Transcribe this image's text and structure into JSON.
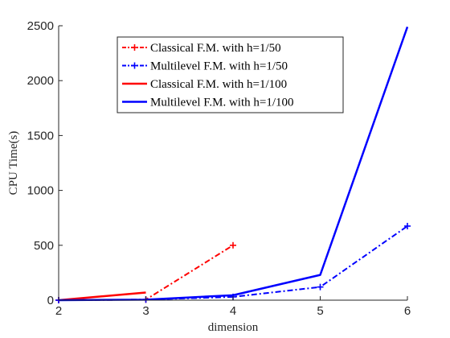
{
  "chart_data": {
    "type": "line",
    "xlabel": "dimension",
    "ylabel": "CPU Time(s)",
    "xlim": [
      2,
      6
    ],
    "ylim": [
      0,
      2500
    ],
    "x_ticks": [
      2,
      3,
      4,
      5,
      6
    ],
    "y_ticks": [
      0,
      500,
      1000,
      1500,
      2000,
      2500
    ],
    "grid": false,
    "legend_position": "top-center",
    "series": [
      {
        "name": "Classical F.M. with h=1/50",
        "color": "#ff0000",
        "style": "dashdot",
        "marker": "plus",
        "x": [
          2,
          3,
          4
        ],
        "values": [
          0,
          5,
          500
        ]
      },
      {
        "name": "Multilevel F.M. with h=1/50",
        "color": "#0000ff",
        "style": "dashdot",
        "marker": "plus",
        "x": [
          2,
          3,
          4,
          5,
          6
        ],
        "values": [
          0,
          5,
          30,
          120,
          675
        ]
      },
      {
        "name": "Classical F.M. with h=1/100",
        "color": "#ff0000",
        "style": "solid",
        "marker": "none",
        "x": [
          2,
          3
        ],
        "values": [
          0,
          70
        ]
      },
      {
        "name": "Multilevel F.M. with h=1/100",
        "color": "#0000ff",
        "style": "solid",
        "marker": "none",
        "x": [
          2,
          3,
          4,
          5,
          6
        ],
        "values": [
          0,
          5,
          45,
          230,
          2490
        ]
      }
    ]
  }
}
